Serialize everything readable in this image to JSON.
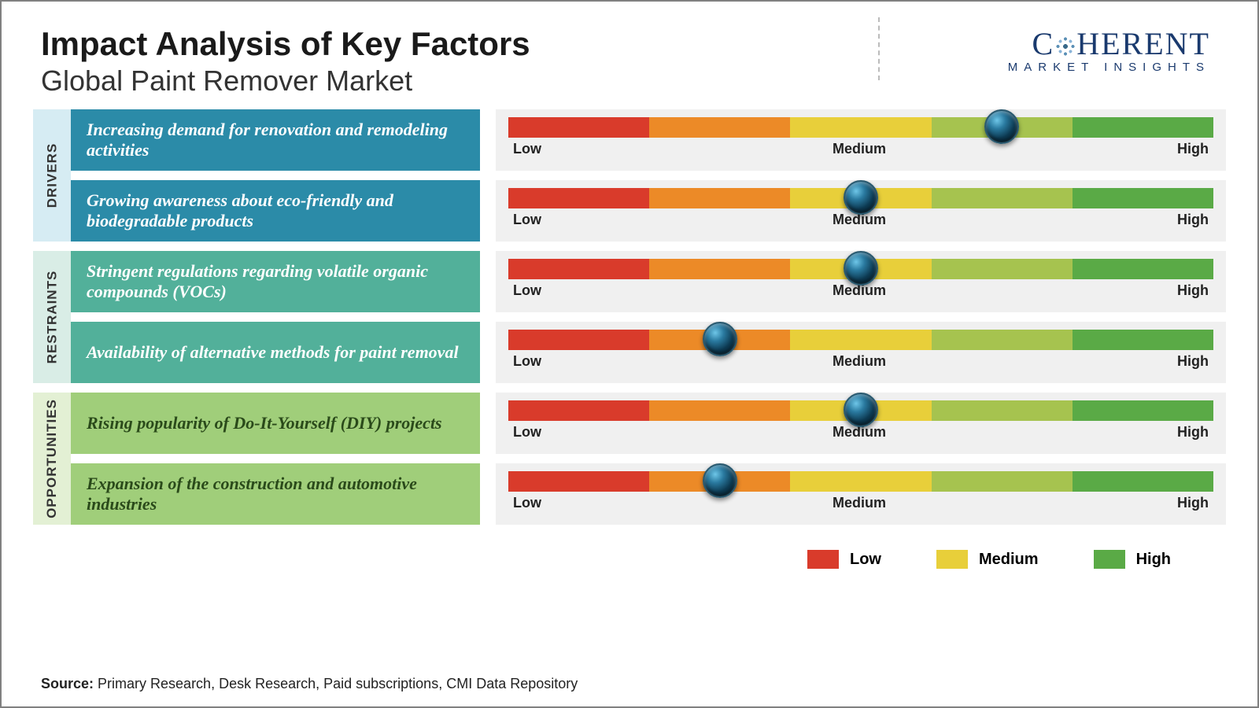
{
  "title": "Impact Analysis of Key Factors",
  "subtitle": "Global Paint Remover Market",
  "logo": {
    "brand_pre": "C",
    "brand_post": "HERENT",
    "sub": "MARKET INSIGHTS"
  },
  "gauge": {
    "segments": [
      "#d93b2b",
      "#ec8a27",
      "#e8cf3a",
      "#a6c34f",
      "#5aaa46"
    ],
    "labels": {
      "low": "Low",
      "mid": "Medium",
      "high": "High"
    }
  },
  "categories": [
    {
      "key": "drivers",
      "label": "DRIVERS",
      "tab_bg": "#d6ecf3",
      "factor_bg": "#2b8ba8",
      "factor_fg": "#ffffff",
      "rows": [
        {
          "text": "Increasing demand for renovation and remodeling activities",
          "value": 70
        },
        {
          "text": "Growing awareness about eco-friendly and biodegradable products",
          "value": 50
        }
      ]
    },
    {
      "key": "restraints",
      "label": "RESTRAINTS",
      "tab_bg": "#d9ede6",
      "factor_bg": "#52b09a",
      "factor_fg": "#ffffff",
      "rows": [
        {
          "text": "Stringent regulations regarding volatile organic compounds (VOCs)",
          "value": 50
        },
        {
          "text": "Availability of alternative methods for paint removal",
          "value": 30
        }
      ]
    },
    {
      "key": "opportunities",
      "label": "OPPORTUNITIES",
      "tab_bg": "#e3f0d4",
      "factor_bg": "#a0ce7a",
      "factor_fg": "#2a4a1a",
      "rows": [
        {
          "text": "Rising popularity of Do-It-Yourself (DIY) projects",
          "value": 50
        },
        {
          "text": "Expansion of the construction and automotive industries",
          "value": 30
        }
      ]
    }
  ],
  "legend": [
    {
      "label": "Low",
      "color": "#d93b2b"
    },
    {
      "label": "Medium",
      "color": "#e8cf3a"
    },
    {
      "label": "High",
      "color": "#5aaa46"
    }
  ],
  "source_label": "Source:",
  "source_text": " Primary Research, Desk Research, Paid subscriptions, CMI Data Repository"
}
